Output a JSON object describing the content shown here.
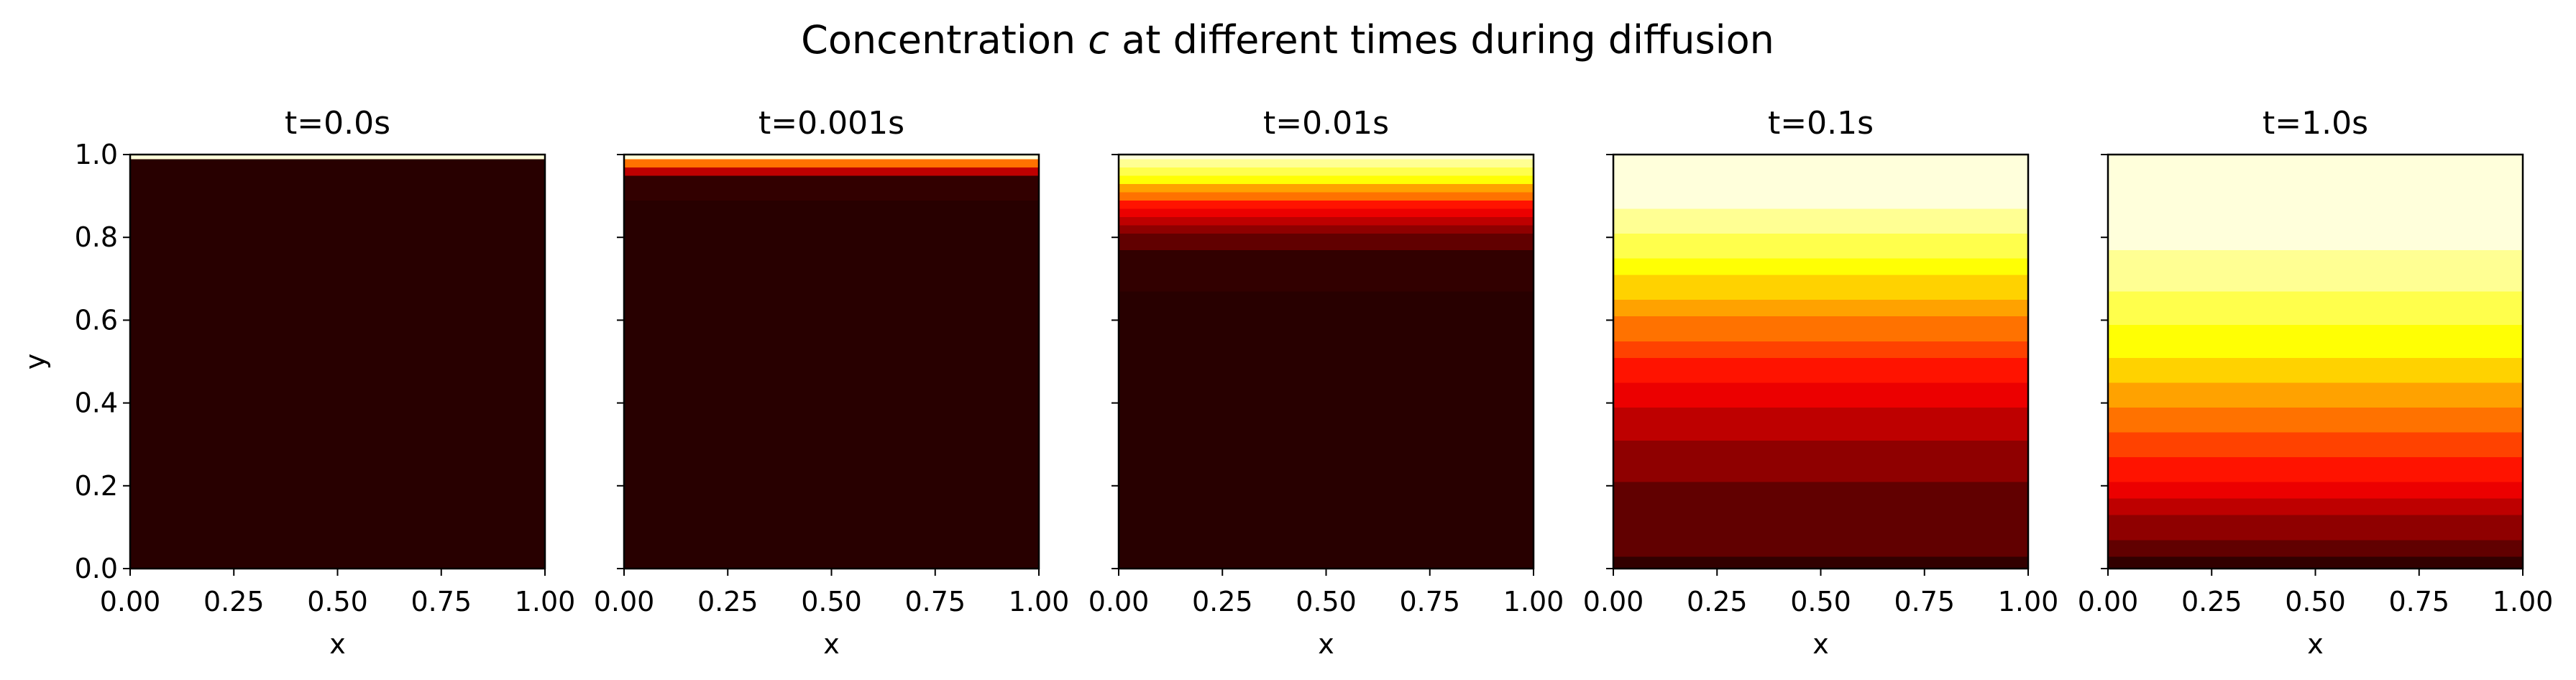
{
  "figure": {
    "suptitle_prefix": "Concentration ",
    "suptitle_var": "c",
    "suptitle_suffix": " at different times during diffusion"
  },
  "colors": {
    "colormap": "hot",
    "frame": "#000000",
    "background": "#ffffff"
  },
  "chart_data": [
    {
      "type": "heatmap",
      "title": "t=0.0s",
      "xlabel": "x",
      "ylabel": "y",
      "xlim": [
        0.0,
        1.0
      ],
      "ylim": [
        0.0,
        1.0
      ],
      "x_ticks": [
        "0.00",
        "0.25",
        "0.50",
        "0.75",
        "1.00"
      ],
      "y_ticks": [
        "0.0",
        "0.2",
        "0.4",
        "0.6",
        "0.8",
        "1.0"
      ],
      "show_ytick_labels": true,
      "colormap": "hot",
      "color_range": [
        0.0,
        1.0
      ],
      "y_grid": [
        0.0,
        0.02,
        0.04,
        0.06,
        0.08,
        0.1,
        0.12,
        0.14,
        0.16,
        0.18,
        0.2,
        0.22,
        0.24,
        0.26,
        0.28,
        0.3,
        0.32,
        0.34,
        0.36,
        0.38,
        0.4,
        0.42,
        0.44,
        0.46,
        0.48,
        0.5,
        0.52,
        0.54,
        0.56,
        0.58,
        0.6,
        0.62,
        0.64,
        0.66,
        0.68,
        0.7,
        0.72,
        0.74,
        0.76,
        0.78,
        0.8,
        0.82,
        0.84,
        0.86,
        0.88,
        0.9,
        0.92,
        0.94,
        0.96,
        0.98,
        1.0
      ],
      "concentration": [
        0.0,
        0.0,
        0.0,
        0.0,
        0.0,
        0.0,
        0.0,
        0.0,
        0.0,
        0.0,
        0.0,
        0.0,
        0.0,
        0.0,
        0.0,
        0.0,
        0.0,
        0.0,
        0.0,
        0.0,
        0.0,
        0.0,
        0.0,
        0.0,
        0.0,
        0.0,
        0.0,
        0.0,
        0.0,
        0.0,
        0.0,
        0.0,
        0.0,
        0.0,
        0.0,
        0.0,
        0.0,
        0.0,
        0.0,
        0.0,
        0.0,
        0.0,
        0.0,
        0.0,
        0.0,
        0.0,
        0.0,
        0.0,
        0.0,
        0.0,
        1.0
      ]
    },
    {
      "type": "heatmap",
      "title": "t=0.001s",
      "xlabel": "x",
      "ylabel": "",
      "xlim": [
        0.0,
        1.0
      ],
      "ylim": [
        0.0,
        1.0
      ],
      "x_ticks": [
        "0.00",
        "0.25",
        "0.50",
        "0.75",
        "1.00"
      ],
      "y_ticks": [
        "0.0",
        "0.2",
        "0.4",
        "0.6",
        "0.8",
        "1.0"
      ],
      "show_ytick_labels": false,
      "colormap": "hot",
      "color_range": [
        0.0,
        1.0
      ],
      "y_grid": [
        0.0,
        0.02,
        0.04,
        0.06,
        0.08,
        0.1,
        0.12,
        0.14,
        0.16,
        0.18,
        0.2,
        0.22,
        0.24,
        0.26,
        0.28,
        0.3,
        0.32,
        0.34,
        0.36,
        0.38,
        0.4,
        0.42,
        0.44,
        0.46,
        0.48,
        0.5,
        0.52,
        0.54,
        0.56,
        0.58,
        0.6,
        0.62,
        0.64,
        0.66,
        0.68,
        0.7,
        0.72,
        0.74,
        0.76,
        0.78,
        0.8,
        0.82,
        0.84,
        0.86,
        0.88,
        0.9,
        0.92,
        0.94,
        0.96,
        0.98,
        1.0
      ],
      "concentration": [
        0.0,
        0.0,
        0.0,
        0.0,
        0.0,
        0.0,
        0.0,
        0.0,
        0.0,
        0.0,
        0.0,
        0.0,
        0.0,
        0.0,
        0.0,
        0.0,
        0.0,
        0.0,
        0.0,
        0.0,
        0.0,
        0.0,
        0.0,
        0.0,
        0.0,
        0.0,
        0.0,
        0.0,
        0.0,
        0.0,
        0.0,
        0.0,
        0.0,
        0.0,
        0.0,
        0.0,
        0.0,
        0.0,
        0.0,
        0.0,
        0.0,
        0.0,
        0.0,
        0.0,
        0.0,
        0.01,
        0.02,
        0.07,
        0.22,
        0.51,
        1.0
      ]
    },
    {
      "type": "heatmap",
      "title": "t=0.01s",
      "xlabel": "x",
      "ylabel": "",
      "xlim": [
        0.0,
        1.0
      ],
      "ylim": [
        0.0,
        1.0
      ],
      "x_ticks": [
        "0.00",
        "0.25",
        "0.50",
        "0.75",
        "1.00"
      ],
      "y_ticks": [
        "0.0",
        "0.2",
        "0.4",
        "0.6",
        "0.8",
        "1.0"
      ],
      "show_ytick_labels": false,
      "colormap": "hot",
      "color_range": [
        0.0,
        1.0
      ],
      "y_grid": [
        0.0,
        0.02,
        0.04,
        0.06,
        0.08,
        0.1,
        0.12,
        0.14,
        0.16,
        0.18,
        0.2,
        0.22,
        0.24,
        0.26,
        0.28,
        0.3,
        0.32,
        0.34,
        0.36,
        0.38,
        0.4,
        0.42,
        0.44,
        0.46,
        0.48,
        0.5,
        0.52,
        0.54,
        0.56,
        0.58,
        0.6,
        0.62,
        0.64,
        0.66,
        0.68,
        0.7,
        0.72,
        0.74,
        0.76,
        0.78,
        0.8,
        0.82,
        0.84,
        0.86,
        0.88,
        0.9,
        0.92,
        0.94,
        0.96,
        0.98,
        1.0
      ],
      "concentration": [
        0.0,
        0.0,
        0.0,
        0.0,
        0.0,
        0.0,
        0.0,
        0.0,
        0.0,
        0.0,
        0.0,
        0.0,
        0.0,
        0.0,
        0.0,
        0.0,
        0.0,
        0.0,
        0.0,
        0.0,
        0.0,
        0.0,
        0.0,
        0.0,
        0.0,
        0.0,
        0.0,
        0.0,
        0.0,
        0.0,
        0.0,
        0.0,
        0.0,
        0.0,
        0.01,
        0.02,
        0.03,
        0.05,
        0.07,
        0.1,
        0.14,
        0.19,
        0.26,
        0.33,
        0.42,
        0.52,
        0.62,
        0.72,
        0.81,
        0.91,
        1.0
      ]
    },
    {
      "type": "heatmap",
      "title": "t=0.1s",
      "xlabel": "x",
      "ylabel": "",
      "xlim": [
        0.0,
        1.0
      ],
      "ylim": [
        0.0,
        1.0
      ],
      "x_ticks": [
        "0.00",
        "0.25",
        "0.50",
        "0.75",
        "1.00"
      ],
      "y_ticks": [
        "0.0",
        "0.2",
        "0.4",
        "0.6",
        "0.8",
        "1.0"
      ],
      "show_ytick_labels": false,
      "colormap": "hot",
      "color_range": [
        0.0,
        1.0
      ],
      "y_grid": [
        0.0,
        0.02,
        0.04,
        0.06,
        0.08,
        0.1,
        0.12,
        0.14,
        0.16,
        0.18,
        0.2,
        0.22,
        0.24,
        0.26,
        0.28,
        0.3,
        0.32,
        0.34,
        0.36,
        0.38,
        0.4,
        0.42,
        0.44,
        0.46,
        0.48,
        0.5,
        0.52,
        0.54,
        0.56,
        0.58,
        0.6,
        0.62,
        0.64,
        0.66,
        0.68,
        0.7,
        0.72,
        0.74,
        0.76,
        0.78,
        0.8,
        0.82,
        0.84,
        0.86,
        0.88,
        0.9,
        0.92,
        0.94,
        0.96,
        0.98,
        1.0
      ],
      "concentration": [
        0.07,
        0.07,
        0.08,
        0.08,
        0.09,
        0.09,
        0.1,
        0.11,
        0.12,
        0.13,
        0.14,
        0.15,
        0.16,
        0.18,
        0.19,
        0.21,
        0.23,
        0.24,
        0.26,
        0.28,
        0.31,
        0.33,
        0.35,
        0.37,
        0.4,
        0.42,
        0.45,
        0.48,
        0.5,
        0.53,
        0.56,
        0.59,
        0.62,
        0.65,
        0.68,
        0.7,
        0.73,
        0.76,
        0.79,
        0.82,
        0.84,
        0.87,
        0.89,
        0.91,
        0.94,
        0.96,
        0.97,
        0.98,
        0.99,
        1.0,
        1.0
      ]
    },
    {
      "type": "heatmap",
      "title": "t=1.0s",
      "xlabel": "x",
      "ylabel": "",
      "xlim": [
        0.0,
        1.0
      ],
      "ylim": [
        0.0,
        1.0
      ],
      "x_ticks": [
        "0.00",
        "0.25",
        "0.50",
        "0.75",
        "1.00"
      ],
      "y_ticks": [
        "0.0",
        "0.2",
        "0.4",
        "0.6",
        "0.8",
        "1.0"
      ],
      "show_ytick_labels": false,
      "colormap": "hot",
      "color_range": [
        0.0,
        1.0
      ],
      "y_grid": [
        0.0,
        0.02,
        0.04,
        0.06,
        0.08,
        0.1,
        0.12,
        0.14,
        0.16,
        0.18,
        0.2,
        0.22,
        0.24,
        0.26,
        0.28,
        0.3,
        0.32,
        0.34,
        0.36,
        0.38,
        0.4,
        0.42,
        0.44,
        0.46,
        0.48,
        0.5,
        0.52,
        0.54,
        0.56,
        0.58,
        0.6,
        0.62,
        0.64,
        0.66,
        0.68,
        0.7,
        0.72,
        0.74,
        0.76,
        0.78,
        0.8,
        0.82,
        0.84,
        0.86,
        0.88,
        0.9,
        0.92,
        0.94,
        0.96,
        0.98,
        1.0
      ],
      "concentration": [
        0.03,
        0.06,
        0.09,
        0.12,
        0.15,
        0.18,
        0.21,
        0.24,
        0.27,
        0.3,
        0.33,
        0.36,
        0.38,
        0.41,
        0.44,
        0.47,
        0.49,
        0.52,
        0.54,
        0.57,
        0.59,
        0.62,
        0.64,
        0.66,
        0.68,
        0.7,
        0.72,
        0.74,
        0.76,
        0.78,
        0.8,
        0.82,
        0.83,
        0.85,
        0.86,
        0.88,
        0.89,
        0.9,
        0.92,
        0.93,
        0.94,
        0.95,
        0.96,
        0.97,
        0.97,
        0.98,
        0.99,
        0.99,
        1.0,
        1.0,
        1.0
      ]
    }
  ]
}
